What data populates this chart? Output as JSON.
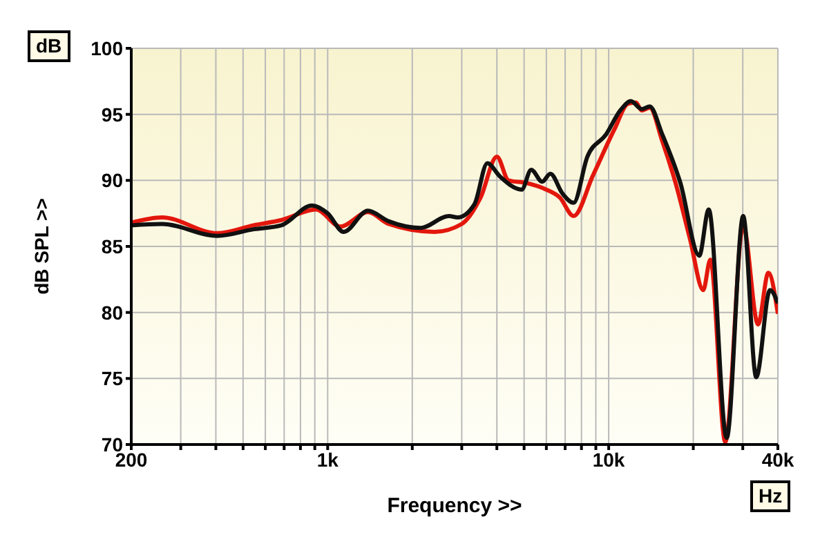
{
  "chart_data": {
    "type": "line",
    "xlabel": "Frequency >>",
    "ylabel": "dB SPL >>",
    "annotations": [
      "dB",
      "Hz"
    ],
    "log": "x",
    "grid": true,
    "marker": "none",
    "line_style": "solid",
    "xlim": [
      200,
      40000
    ],
    "ylim": [
      70,
      100
    ],
    "xticks": [
      200,
      {
        "value": 300,
        "label": null
      },
      {
        "value": 400,
        "label": null
      },
      {
        "value": 500,
        "label": null
      },
      {
        "value": 600,
        "label": null
      },
      {
        "value": 700,
        "label": null
      },
      {
        "value": 800,
        "label": null
      },
      {
        "value": 900,
        "label": null
      },
      {
        "value": 1000,
        "label": "1k"
      },
      {
        "value": 2000,
        "label": null
      },
      {
        "value": 3000,
        "label": null
      },
      {
        "value": 4000,
        "label": null
      },
      {
        "value": 5000,
        "label": null
      },
      {
        "value": 6000,
        "label": null
      },
      {
        "value": 7000,
        "label": null
      },
      {
        "value": 8000,
        "label": null
      },
      {
        "value": 9000,
        "label": null
      },
      {
        "value": 10000,
        "label": "10k"
      },
      {
        "value": 20000,
        "label": null
      },
      {
        "value": 30000,
        "label": null
      },
      {
        "value": 40000,
        "label": "40k"
      }
    ],
    "yticks": [
      70,
      75,
      80,
      85,
      90,
      95,
      100
    ],
    "series": [
      {
        "color": "#e3170d",
        "x": [
          200,
          257,
          405,
          545,
          685,
          910,
          1110,
          1390,
          1650,
          2400,
          3000,
          3500,
          4000,
          4400,
          5100,
          6000,
          6700,
          7500,
          8800,
          10500,
          11700,
          12500,
          13100,
          14000,
          15500,
          17300,
          19500,
          21700,
          23000,
          26000,
          30100,
          34000,
          37000,
          40000
        ],
        "values": [
          86.8,
          87.2,
          86.0,
          86.6,
          87.0,
          87.8,
          86.5,
          87.6,
          86.7,
          86.1,
          86.7,
          88.7,
          91.8,
          90.0,
          89.8,
          89.3,
          88.7,
          87.3,
          90.4,
          93.9,
          95.8,
          95.9,
          95.3,
          95.5,
          93.0,
          89.8,
          85.5,
          81.7,
          84.0,
          70.2,
          86.6,
          79.1,
          83.0,
          79.9
        ]
      },
      {
        "color": "#111111",
        "x": [
          200,
          257,
          405,
          545,
          685,
          880,
          1000,
          1140,
          1390,
          1650,
          2140,
          2700,
          2900,
          3330,
          3700,
          4100,
          4900,
          5300,
          5800,
          6200,
          6850,
          7500,
          8400,
          9800,
          11000,
          12000,
          13100,
          14000,
          15500,
          18000,
          21000,
          22700,
          26300,
          30100,
          33500,
          37500,
          40000
        ],
        "values": [
          86.6,
          86.7,
          85.8,
          86.3,
          86.6,
          88.1,
          87.5,
          86.1,
          87.7,
          86.9,
          86.4,
          87.3,
          87.2,
          88.2,
          91.3,
          90.3,
          89.3,
          90.8,
          89.9,
          90.5,
          89.0,
          88.3,
          91.8,
          93.5,
          95.3,
          96.0,
          95.4,
          95.6,
          93.5,
          89.8,
          84.3,
          87.8,
          70.5,
          87.3,
          75.1,
          81.7,
          80.7
        ]
      }
    ]
  }
}
